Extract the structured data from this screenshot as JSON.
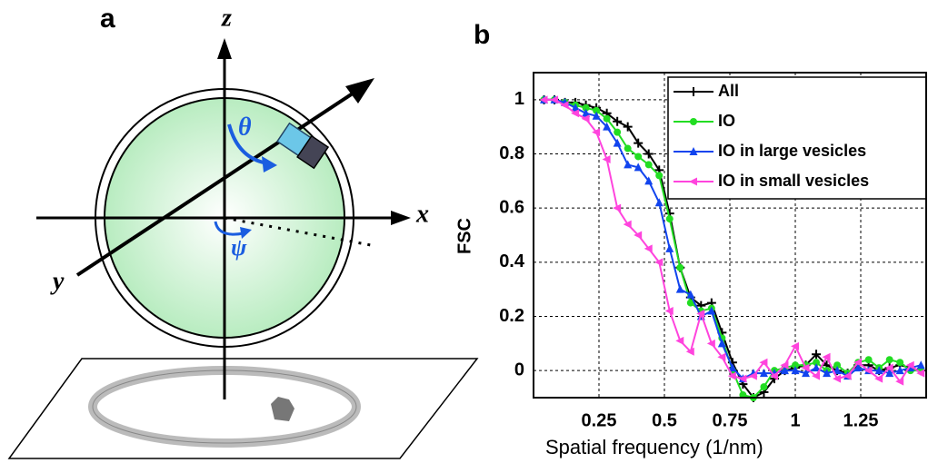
{
  "panel_a": {
    "panel_label": "a",
    "z": "z",
    "x": "x",
    "y": "y",
    "theta": "θ",
    "psi": "ψ"
  },
  "chart_data": {
    "type": "line",
    "panel_label": "b",
    "xlabel": "Spatial frequency (1/nm)",
    "ylabel": "FSC",
    "xlim": [
      0,
      1.5
    ],
    "ylim": [
      -0.1,
      1.1
    ],
    "xticks": [
      0.25,
      0.5,
      0.75,
      1,
      1.25
    ],
    "yticks": [
      0,
      0.2,
      0.4,
      0.6,
      0.8,
      1
    ],
    "grid": true,
    "legend": "upper right",
    "x": [
      0.04,
      0.08,
      0.12,
      0.16,
      0.2,
      0.24,
      0.28,
      0.32,
      0.36,
      0.4,
      0.44,
      0.48,
      0.52,
      0.56,
      0.6,
      0.64,
      0.68,
      0.72,
      0.76,
      0.8,
      0.84,
      0.88,
      0.92,
      0.96,
      1,
      1.04,
      1.08,
      1.12,
      1.16,
      1.2,
      1.24,
      1.28,
      1.32,
      1.36,
      1.4,
      1.44,
      1.48
    ],
    "series": [
      {
        "name": "All",
        "color": "#000000",
        "marker": "plus",
        "values": [
          1,
          1,
          0.99,
          0.99,
          0.98,
          0.97,
          0.95,
          0.92,
          0.9,
          0.84,
          0.8,
          0.74,
          0.58,
          0.38,
          0.27,
          0.24,
          0.25,
          0.14,
          0.03,
          -0.05,
          -0.1,
          -0.08,
          -0.03,
          0,
          0.01,
          0.02,
          0.06,
          0.02,
          0,
          -0.01,
          0.02,
          0.02,
          0,
          0.01,
          0.02,
          0.01,
          0
        ]
      },
      {
        "name": "IO",
        "color": "#22dd22",
        "marker": "circle",
        "values": [
          1,
          1,
          0.99,
          0.98,
          0.97,
          0.96,
          0.93,
          0.88,
          0.82,
          0.79,
          0.76,
          0.72,
          0.56,
          0.38,
          0.25,
          0.22,
          0.23,
          0.12,
          0,
          -0.09,
          -0.1,
          -0.06,
          0,
          0.01,
          0.02,
          0.02,
          0.03,
          0,
          0.02,
          -0.01,
          0.03,
          0.04,
          0.01,
          0.04,
          0.03,
          0,
          0
        ]
      },
      {
        "name": "IO in large vesicles",
        "color": "#1144ee",
        "marker": "triangle-up",
        "values": [
          1,
          1,
          0.99,
          0.97,
          0.95,
          0.94,
          0.9,
          0.84,
          0.76,
          0.75,
          0.7,
          0.62,
          0.45,
          0.3,
          0.28,
          0.2,
          0.22,
          0.1,
          0.01,
          -0.03,
          -0.01,
          -0.01,
          -0.01,
          0,
          0,
          -0.01,
          0.01,
          -0.01,
          0,
          -0.02,
          0.01,
          0,
          0,
          -0.01,
          0,
          0.01,
          0.02
        ]
      },
      {
        "name": "IO in small vesicles",
        "color": "#ff44dd",
        "marker": "triangle-left",
        "values": [
          1,
          1,
          0.98,
          0.95,
          0.93,
          0.88,
          0.78,
          0.6,
          0.54,
          0.5,
          0.45,
          0.4,
          0.22,
          0.11,
          0.07,
          0.21,
          0.1,
          0.05,
          -0.02,
          -0.03,
          -0.02,
          0.03,
          -0.02,
          0.02,
          0.09,
          0.01,
          -0.02,
          0.05,
          -0.03,
          -0.02,
          0.03,
          0,
          -0.03,
          0.01,
          -0.04,
          0.02,
          -0.01
        ]
      }
    ]
  }
}
